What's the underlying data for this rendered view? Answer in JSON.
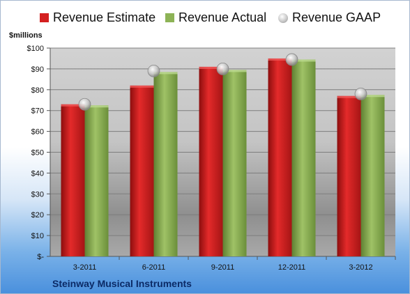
{
  "chart_data": {
    "type": "bar",
    "ylabel": "$millions",
    "ylim": [
      0,
      100
    ],
    "yticks": [
      0,
      10,
      20,
      30,
      40,
      50,
      60,
      70,
      80,
      90,
      100
    ],
    "ytick_labels": [
      "$-",
      "$10",
      "$20",
      "$30",
      "$40",
      "$50",
      "$60",
      "$70",
      "$80",
      "$90",
      "$100"
    ],
    "categories": [
      "3-2011",
      "6-2011",
      "9-2011",
      "12-2011",
      "3-2012"
    ],
    "series": [
      {
        "name": "Revenue Estimate",
        "kind": "bar",
        "color": "#d42020",
        "values": [
          73,
          82,
          91,
          95,
          77
        ]
      },
      {
        "name": "Revenue Actual",
        "kind": "bar",
        "color": "#8db356",
        "values": [
          72.5,
          88.5,
          89.5,
          94.5,
          77.5
        ]
      },
      {
        "name": "Revenue GAAP",
        "kind": "marker",
        "color": "#b8b8b8",
        "values": [
          73,
          89,
          90,
          94.5,
          78
        ]
      }
    ],
    "grid": true,
    "legend_position": "top"
  },
  "footer": {
    "company": "Steinway Musical Instruments"
  }
}
